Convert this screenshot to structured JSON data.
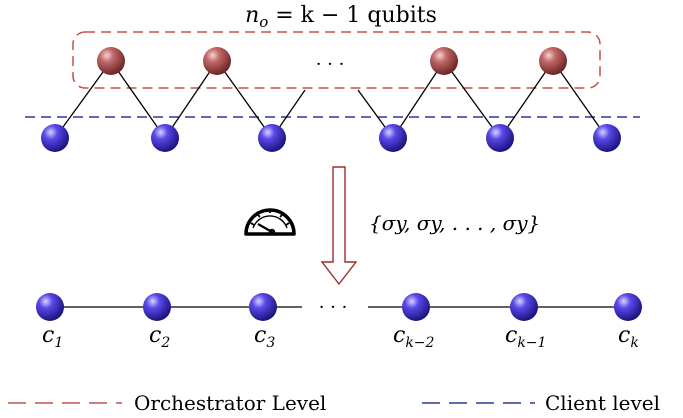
{
  "title": {
    "var": "n",
    "sub": "o",
    "expr": " =  k − 1 qubits"
  },
  "top_dots": "· · ·",
  "bottom_dots": "· · ·",
  "measurement": {
    "icon": "meter-icon",
    "label": "{σy, σy, . . . , σy}"
  },
  "client_labels": [
    {
      "base": "c",
      "sub": "1"
    },
    {
      "base": "c",
      "sub": "2"
    },
    {
      "base": "c",
      "sub": "3"
    },
    {
      "base": "c",
      "sub": "k−2"
    },
    {
      "base": "c",
      "sub": "k−1"
    },
    {
      "base": "c",
      "sub": "k"
    }
  ],
  "legend": {
    "orchestrator": {
      "label": "Orchestrator Level",
      "color": "#c0504d"
    },
    "client": {
      "label": "Client level",
      "color": "#2b3a9a"
    }
  },
  "colors": {
    "orchestrator_qubit": "#a84b4b",
    "client_qubit": "#3b2dc8",
    "arrow": "#a02c2c"
  }
}
